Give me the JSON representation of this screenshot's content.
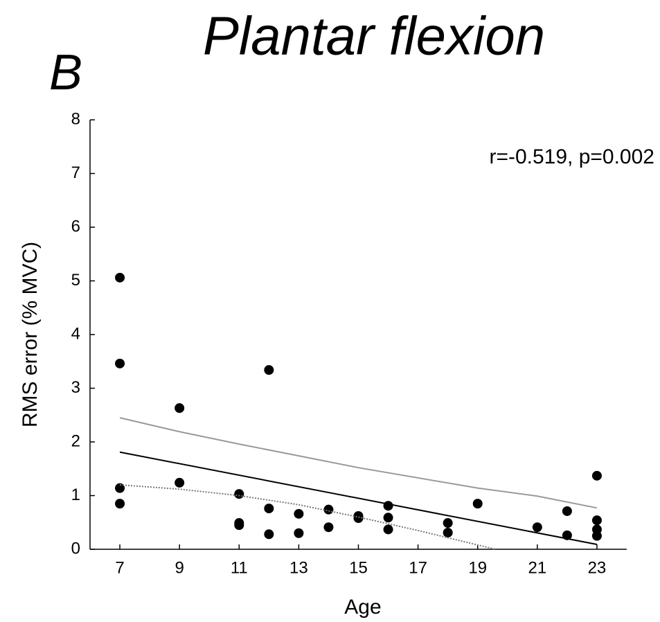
{
  "chart_data": {
    "type": "scatter",
    "title": "Plantar flexion",
    "panel_label": "B",
    "annotation": "r=-0.519, p=0.002",
    "x_label": "Age",
    "y_label": "RMS error (% MVC)",
    "xlim": [
      6,
      24
    ],
    "xticks": [
      7,
      9,
      11,
      13,
      15,
      17,
      19,
      21,
      23
    ],
    "ylim": [
      0,
      8
    ],
    "yticks": [
      0,
      1,
      2,
      3,
      4,
      5,
      6,
      7,
      8
    ],
    "grid": false,
    "series": [
      {
        "type": "scatter",
        "color": "#000000",
        "x": [
          7,
          7,
          7,
          7,
          9,
          9,
          11,
          11,
          11,
          12,
          12,
          12,
          13,
          13,
          14,
          14,
          15,
          15,
          16,
          16,
          16,
          18,
          18,
          19,
          21,
          22,
          22,
          23,
          23,
          23,
          23
        ],
        "values": [
          5.06,
          3.46,
          1.14,
          0.85,
          2.63,
          1.24,
          1.03,
          0.49,
          0.45,
          3.34,
          0.76,
          0.28,
          0.66,
          0.3,
          0.74,
          0.41,
          0.62,
          0.58,
          0.81,
          0.59,
          0.37,
          0.49,
          0.31,
          0.85,
          0.41,
          0.71,
          0.26,
          1.37,
          0.54,
          0.37,
          0.25
        ]
      },
      {
        "type": "line",
        "color": "#000000",
        "style": "solid",
        "x": [
          7,
          23
        ],
        "values": [
          1.81,
          0.09
        ]
      },
      {
        "type": "line",
        "color": "#999999",
        "style": "solid",
        "x": [
          7,
          9,
          11,
          13,
          15,
          17,
          19,
          21,
          23
        ],
        "values": [
          2.45,
          2.19,
          1.96,
          1.74,
          1.52,
          1.33,
          1.14,
          0.99,
          0.77
        ]
      },
      {
        "type": "line",
        "color": "#777777",
        "style": "dotted",
        "x": [
          7,
          9,
          11,
          13,
          15,
          17,
          19,
          19.6
        ],
        "values": [
          1.2,
          1.12,
          1.0,
          0.83,
          0.6,
          0.35,
          0.08,
          0
        ]
      }
    ]
  }
}
